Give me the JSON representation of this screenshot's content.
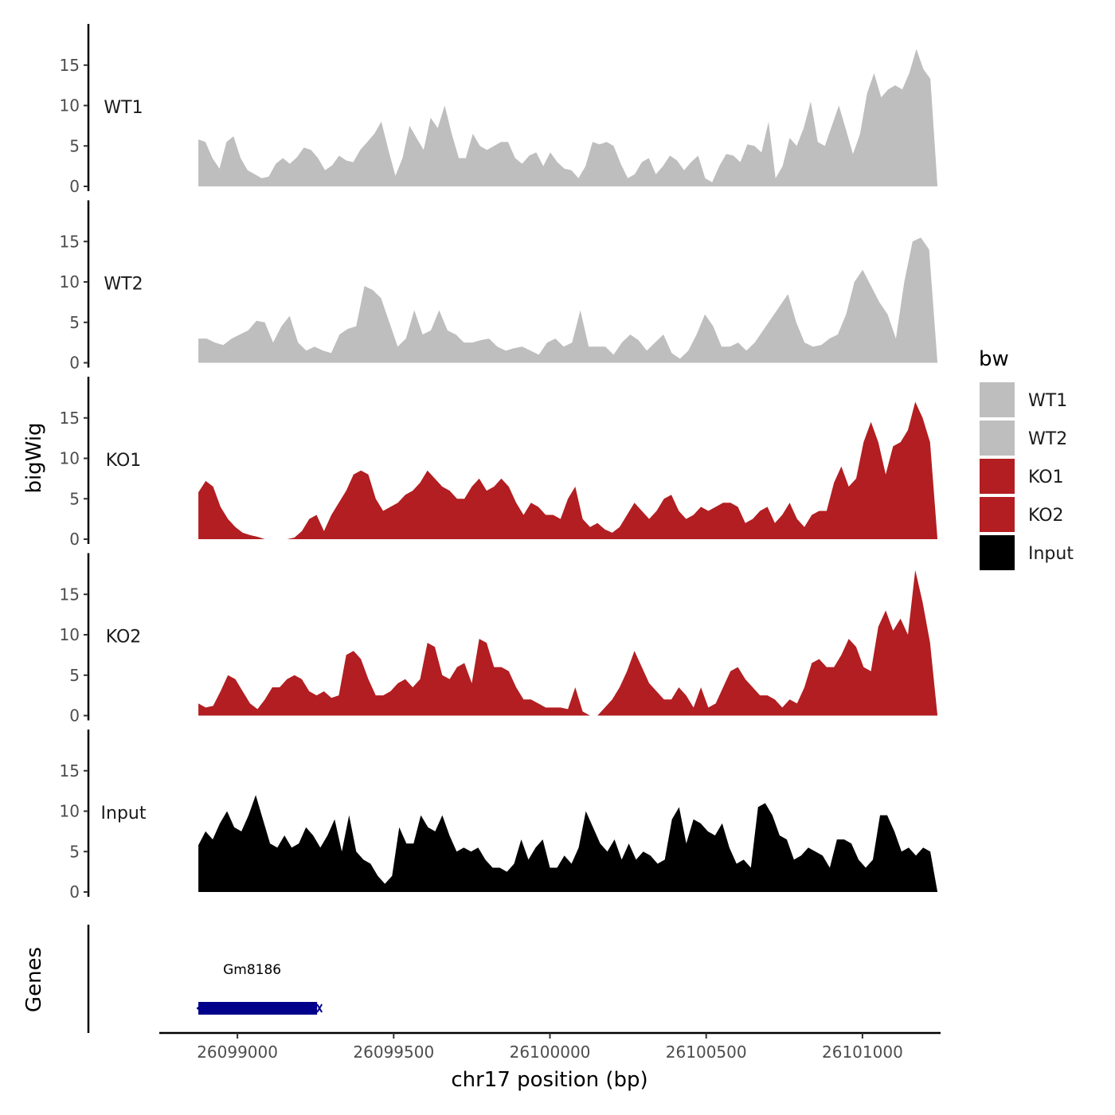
{
  "chart_data": {
    "type": "area",
    "title": "",
    "ylabel": "bigWig",
    "xlabel": "chr17 position (bp)",
    "xlim": [
      26098750,
      26101250
    ],
    "x_tick_values": [
      26099000,
      26099500,
      26100000,
      26100500,
      26101000
    ],
    "x_tick_labels": [
      "26099000",
      "26099500",
      "26100000",
      "26100500",
      "26101000"
    ],
    "ylim": [
      0,
      20
    ],
    "y_tick_values": [
      0,
      5,
      10,
      15
    ],
    "y_tick_labels": [
      "0",
      "5",
      "10",
      "15"
    ],
    "data_start": 26098875,
    "data_end": 26101240,
    "series": [
      {
        "name": "WT1",
        "color": "#BEBEBE",
        "values": [
          5.8,
          5.5,
          3.5,
          2.2,
          5.5,
          6.2,
          3.5,
          2.0,
          1.5,
          1.0,
          1.2,
          2.8,
          3.5,
          2.8,
          3.6,
          4.8,
          4.5,
          3.5,
          2.0,
          2.6,
          3.8,
          3.2,
          3.0,
          4.5,
          5.5,
          6.5,
          8.0,
          4.5,
          1.3,
          3.5,
          7.5,
          6.0,
          4.5,
          8.5,
          7.2,
          10.0,
          6.5,
          3.5,
          3.5,
          6.5,
          5.0,
          4.5,
          5.0,
          5.5,
          5.5,
          3.5,
          2.8,
          3.8,
          4.2,
          2.5,
          4.2,
          3.0,
          2.2,
          2.0,
          1.0,
          2.5,
          5.5,
          5.2,
          5.5,
          5.0,
          2.8,
          1.0,
          1.5,
          3.0,
          3.5,
          1.5,
          2.5,
          3.8,
          3.2,
          2.0,
          3.0,
          3.8,
          1.0,
          0.5,
          2.5,
          4.0,
          3.8,
          3.0,
          5.2,
          5.0,
          4.2,
          8.0,
          1.0,
          2.5,
          6.0,
          5.0,
          7.2,
          10.5,
          5.5,
          5.0,
          7.5,
          10.0,
          7.0,
          4.0,
          6.5,
          11.5,
          14.0,
          11.0,
          12.0,
          12.5,
          12.0,
          14.0,
          17.0,
          14.5,
          13.3,
          0.0
        ]
      },
      {
        "name": "WT2",
        "color": "#BEBEBE",
        "values": [
          3.0,
          3.0,
          2.5,
          2.2,
          3.0,
          3.5,
          4.0,
          5.2,
          5.0,
          2.5,
          4.5,
          5.8,
          2.5,
          1.5,
          2.0,
          1.5,
          1.2,
          3.5,
          4.2,
          4.5,
          9.5,
          9.0,
          8.0,
          5.0,
          2.0,
          3.0,
          6.5,
          3.5,
          4.0,
          6.5,
          4.0,
          3.5,
          2.5,
          2.5,
          2.8,
          3.0,
          2.0,
          1.5,
          1.8,
          2.0,
          1.5,
          1.0,
          2.5,
          3.0,
          2.0,
          2.5,
          6.5,
          2.0,
          2.0,
          2.0,
          1.0,
          2.5,
          3.5,
          2.8,
          1.5,
          2.5,
          3.5,
          1.2,
          0.5,
          1.5,
          3.5,
          6.0,
          4.5,
          2.0,
          2.0,
          2.5,
          1.5,
          2.5,
          4.0,
          5.5,
          7.0,
          8.5,
          5.0,
          2.5,
          2.0,
          2.2,
          3.0,
          3.5,
          6.0,
          10.0,
          11.5,
          9.5,
          7.5,
          6.0,
          3.0,
          10.0,
          15.0,
          15.5,
          14.0,
          0.0
        ]
      },
      {
        "name": "KO1",
        "color": "#B21E21",
        "values": [
          5.8,
          7.2,
          6.5,
          4.0,
          2.5,
          1.5,
          0.8,
          0.5,
          0.3,
          0.0,
          0.0,
          0.0,
          0.0,
          0.2,
          1.0,
          2.5,
          3.0,
          1.0,
          3.0,
          4.5,
          6.0,
          8.0,
          8.5,
          8.0,
          5.0,
          3.5,
          4.0,
          4.5,
          5.5,
          6.0,
          7.0,
          8.5,
          7.5,
          6.5,
          6.0,
          5.0,
          5.0,
          6.5,
          7.5,
          6.0,
          6.5,
          7.5,
          6.5,
          4.5,
          3.0,
          4.5,
          4.0,
          3.0,
          3.0,
          2.5,
          5.0,
          6.5,
          2.5,
          1.5,
          2.0,
          1.2,
          0.8,
          1.5,
          3.0,
          4.5,
          3.5,
          2.5,
          3.5,
          5.0,
          5.5,
          3.5,
          2.5,
          3.0,
          4.0,
          3.5,
          4.0,
          4.5,
          4.5,
          4.0,
          2.0,
          2.5,
          3.5,
          4.0,
          2.0,
          3.0,
          4.5,
          2.5,
          1.5,
          3.0,
          3.5,
          3.5,
          7.0,
          9.0,
          6.5,
          7.5,
          12.0,
          14.5,
          12.0,
          8.0,
          11.5,
          12.0,
          13.5,
          17.0,
          15.0,
          12.0,
          0.0
        ]
      },
      {
        "name": "KO2",
        "color": "#B21E21",
        "values": [
          1.5,
          1.0,
          1.2,
          3.0,
          5.0,
          4.5,
          3.0,
          1.5,
          0.8,
          2.0,
          3.5,
          3.5,
          4.5,
          5.0,
          4.5,
          3.0,
          2.5,
          3.0,
          2.2,
          2.5,
          7.5,
          8.0,
          7.0,
          4.5,
          2.5,
          2.5,
          3.0,
          4.0,
          4.5,
          3.5,
          4.5,
          9.0,
          8.5,
          5.0,
          4.5,
          6.0,
          6.5,
          4.0,
          9.5,
          9.0,
          6.0,
          6.0,
          5.5,
          3.5,
          2.0,
          2.0,
          1.5,
          1.0,
          1.0,
          1.0,
          0.8,
          3.5,
          0.5,
          0.0,
          0.0,
          1.0,
          2.0,
          3.5,
          5.5,
          8.0,
          6.0,
          4.0,
          3.0,
          2.0,
          2.0,
          3.5,
          2.5,
          1.0,
          3.5,
          1.0,
          1.5,
          3.5,
          5.5,
          6.0,
          4.5,
          3.5,
          2.5,
          2.5,
          2.0,
          1.0,
          2.0,
          1.5,
          3.5,
          6.5,
          7.0,
          6.0,
          6.0,
          7.5,
          9.5,
          8.5,
          6.0,
          5.5,
          11.0,
          13.0,
          10.5,
          12.0,
          10.0,
          18.0,
          14.0,
          9.0,
          0.0
        ]
      },
      {
        "name": "Input",
        "color": "#000000",
        "values": [
          5.8,
          7.5,
          6.5,
          8.5,
          10.0,
          8.0,
          7.5,
          9.5,
          12.0,
          9.0,
          6.0,
          5.5,
          7.0,
          5.5,
          6.0,
          8.0,
          7.0,
          5.5,
          7.0,
          9.0,
          5.0,
          9.5,
          5.0,
          4.0,
          3.5,
          2.0,
          1.0,
          2.0,
          8.0,
          6.0,
          6.0,
          9.5,
          8.0,
          7.5,
          9.5,
          7.0,
          5.0,
          5.5,
          5.0,
          5.5,
          4.0,
          3.0,
          3.0,
          2.5,
          3.5,
          6.5,
          4.0,
          5.5,
          6.5,
          3.0,
          3.0,
          4.5,
          3.5,
          5.5,
          10.0,
          8.0,
          6.0,
          5.0,
          6.5,
          4.0,
          6.0,
          4.0,
          5.0,
          4.5,
          3.5,
          4.0,
          9.0,
          10.5,
          6.0,
          9.0,
          8.5,
          7.5,
          7.0,
          8.5,
          5.5,
          3.5,
          4.0,
          3.0,
          10.5,
          11.0,
          9.5,
          7.0,
          6.5,
          4.0,
          4.5,
          5.5,
          5.0,
          4.5,
          3.0,
          6.5,
          6.5,
          6.0,
          4.0,
          3.0,
          4.0,
          9.5,
          9.5,
          7.5,
          5.0,
          5.5,
          4.5,
          5.5,
          5.0,
          0.0
        ]
      }
    ],
    "genes_track": {
      "label": "Genes",
      "genes": [
        {
          "name": "Gm8186",
          "start": 26098875,
          "end": 26099255,
          "strand": "-",
          "color": "#00008B"
        }
      ]
    },
    "legend": {
      "title": "bw",
      "position": "right",
      "entries": [
        "WT1",
        "WT2",
        "KO1",
        "KO2",
        "Input"
      ]
    }
  }
}
